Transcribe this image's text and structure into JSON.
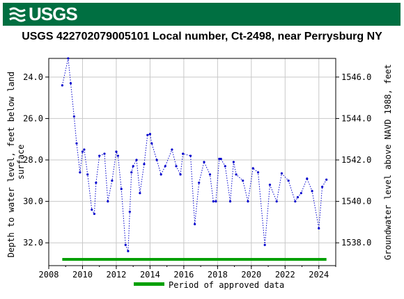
{
  "banner": {
    "logo_text": "USGS",
    "color": "#006f41"
  },
  "chart_data": {
    "type": "line",
    "title": "USGS 422702079005101 Local number, Ct-2498, near Perrysburg NY",
    "ylabel_left": "Depth to water level, feet below land surface",
    "ylabel_right": "Groundwater level above NAVD 1988, feet",
    "xlim": [
      2008,
      2025
    ],
    "ylim_left": [
      33.1,
      23.1
    ],
    "ylim_right": [
      1536.9,
      1546.9
    ],
    "x_ticks": [
      2008,
      2010,
      2012,
      2014,
      2016,
      2018,
      2020,
      2022,
      2024
    ],
    "y_ticks_left": [
      24.0,
      26.0,
      28.0,
      30.0,
      32.0
    ],
    "y_ticks_right": [
      1538.0,
      1540.0,
      1542.0,
      1544.0,
      1546.0
    ],
    "grid": true,
    "series": [
      {
        "color": "#0000cc",
        "x": [
          2008.8,
          2009.15,
          2009.3,
          2009.5,
          2009.65,
          2009.85,
          2010.0,
          2010.1,
          2010.3,
          2010.55,
          2010.7,
          2010.8,
          2011.0,
          2011.3,
          2011.5,
          2011.75,
          2012.0,
          2012.1,
          2012.3,
          2012.55,
          2012.7,
          2012.8,
          2012.9,
          2013.0,
          2013.2,
          2013.4,
          2013.65,
          2013.85,
          2014.0,
          2014.1,
          2014.4,
          2014.65,
          2014.9,
          2015.3,
          2015.55,
          2015.8,
          2015.95,
          2016.4,
          2016.65,
          2016.9,
          2017.2,
          2017.55,
          2017.75,
          2017.9,
          2018.1,
          2018.2,
          2018.45,
          2018.75,
          2018.95,
          2019.1,
          2019.5,
          2019.8,
          2020.1,
          2020.4,
          2020.8,
          2021.1,
          2021.5,
          2021.8,
          2022.2,
          2022.6,
          2022.75,
          2022.95,
          2023.3,
          2023.6,
          2024.0,
          2024.2,
          2024.45
        ],
        "y": [
          24.4,
          23.1,
          24.3,
          25.9,
          27.2,
          28.6,
          27.6,
          27.5,
          28.7,
          30.4,
          30.6,
          29.1,
          27.8,
          27.7,
          30.0,
          29.0,
          27.6,
          27.8,
          29.4,
          32.1,
          32.4,
          30.5,
          28.6,
          28.3,
          28.0,
          29.6,
          28.2,
          26.8,
          26.75,
          27.2,
          28.0,
          28.7,
          28.3,
          27.5,
          28.3,
          28.7,
          27.7,
          27.8,
          31.1,
          29.1,
          28.1,
          28.7,
          30.0,
          30.0,
          27.95,
          27.95,
          28.3,
          30.0,
          28.1,
          28.7,
          29.0,
          30.0,
          28.4,
          28.6,
          32.1,
          29.2,
          30.0,
          28.65,
          29.0,
          30.0,
          29.8,
          29.6,
          28.9,
          29.5,
          31.3,
          29.3,
          28.95
        ]
      }
    ],
    "period_bar": {
      "x": [
        2008.8,
        2024.45
      ],
      "color": "#00a000"
    },
    "legend": {
      "label": "Period of approved data",
      "placement": "bottom"
    }
  }
}
